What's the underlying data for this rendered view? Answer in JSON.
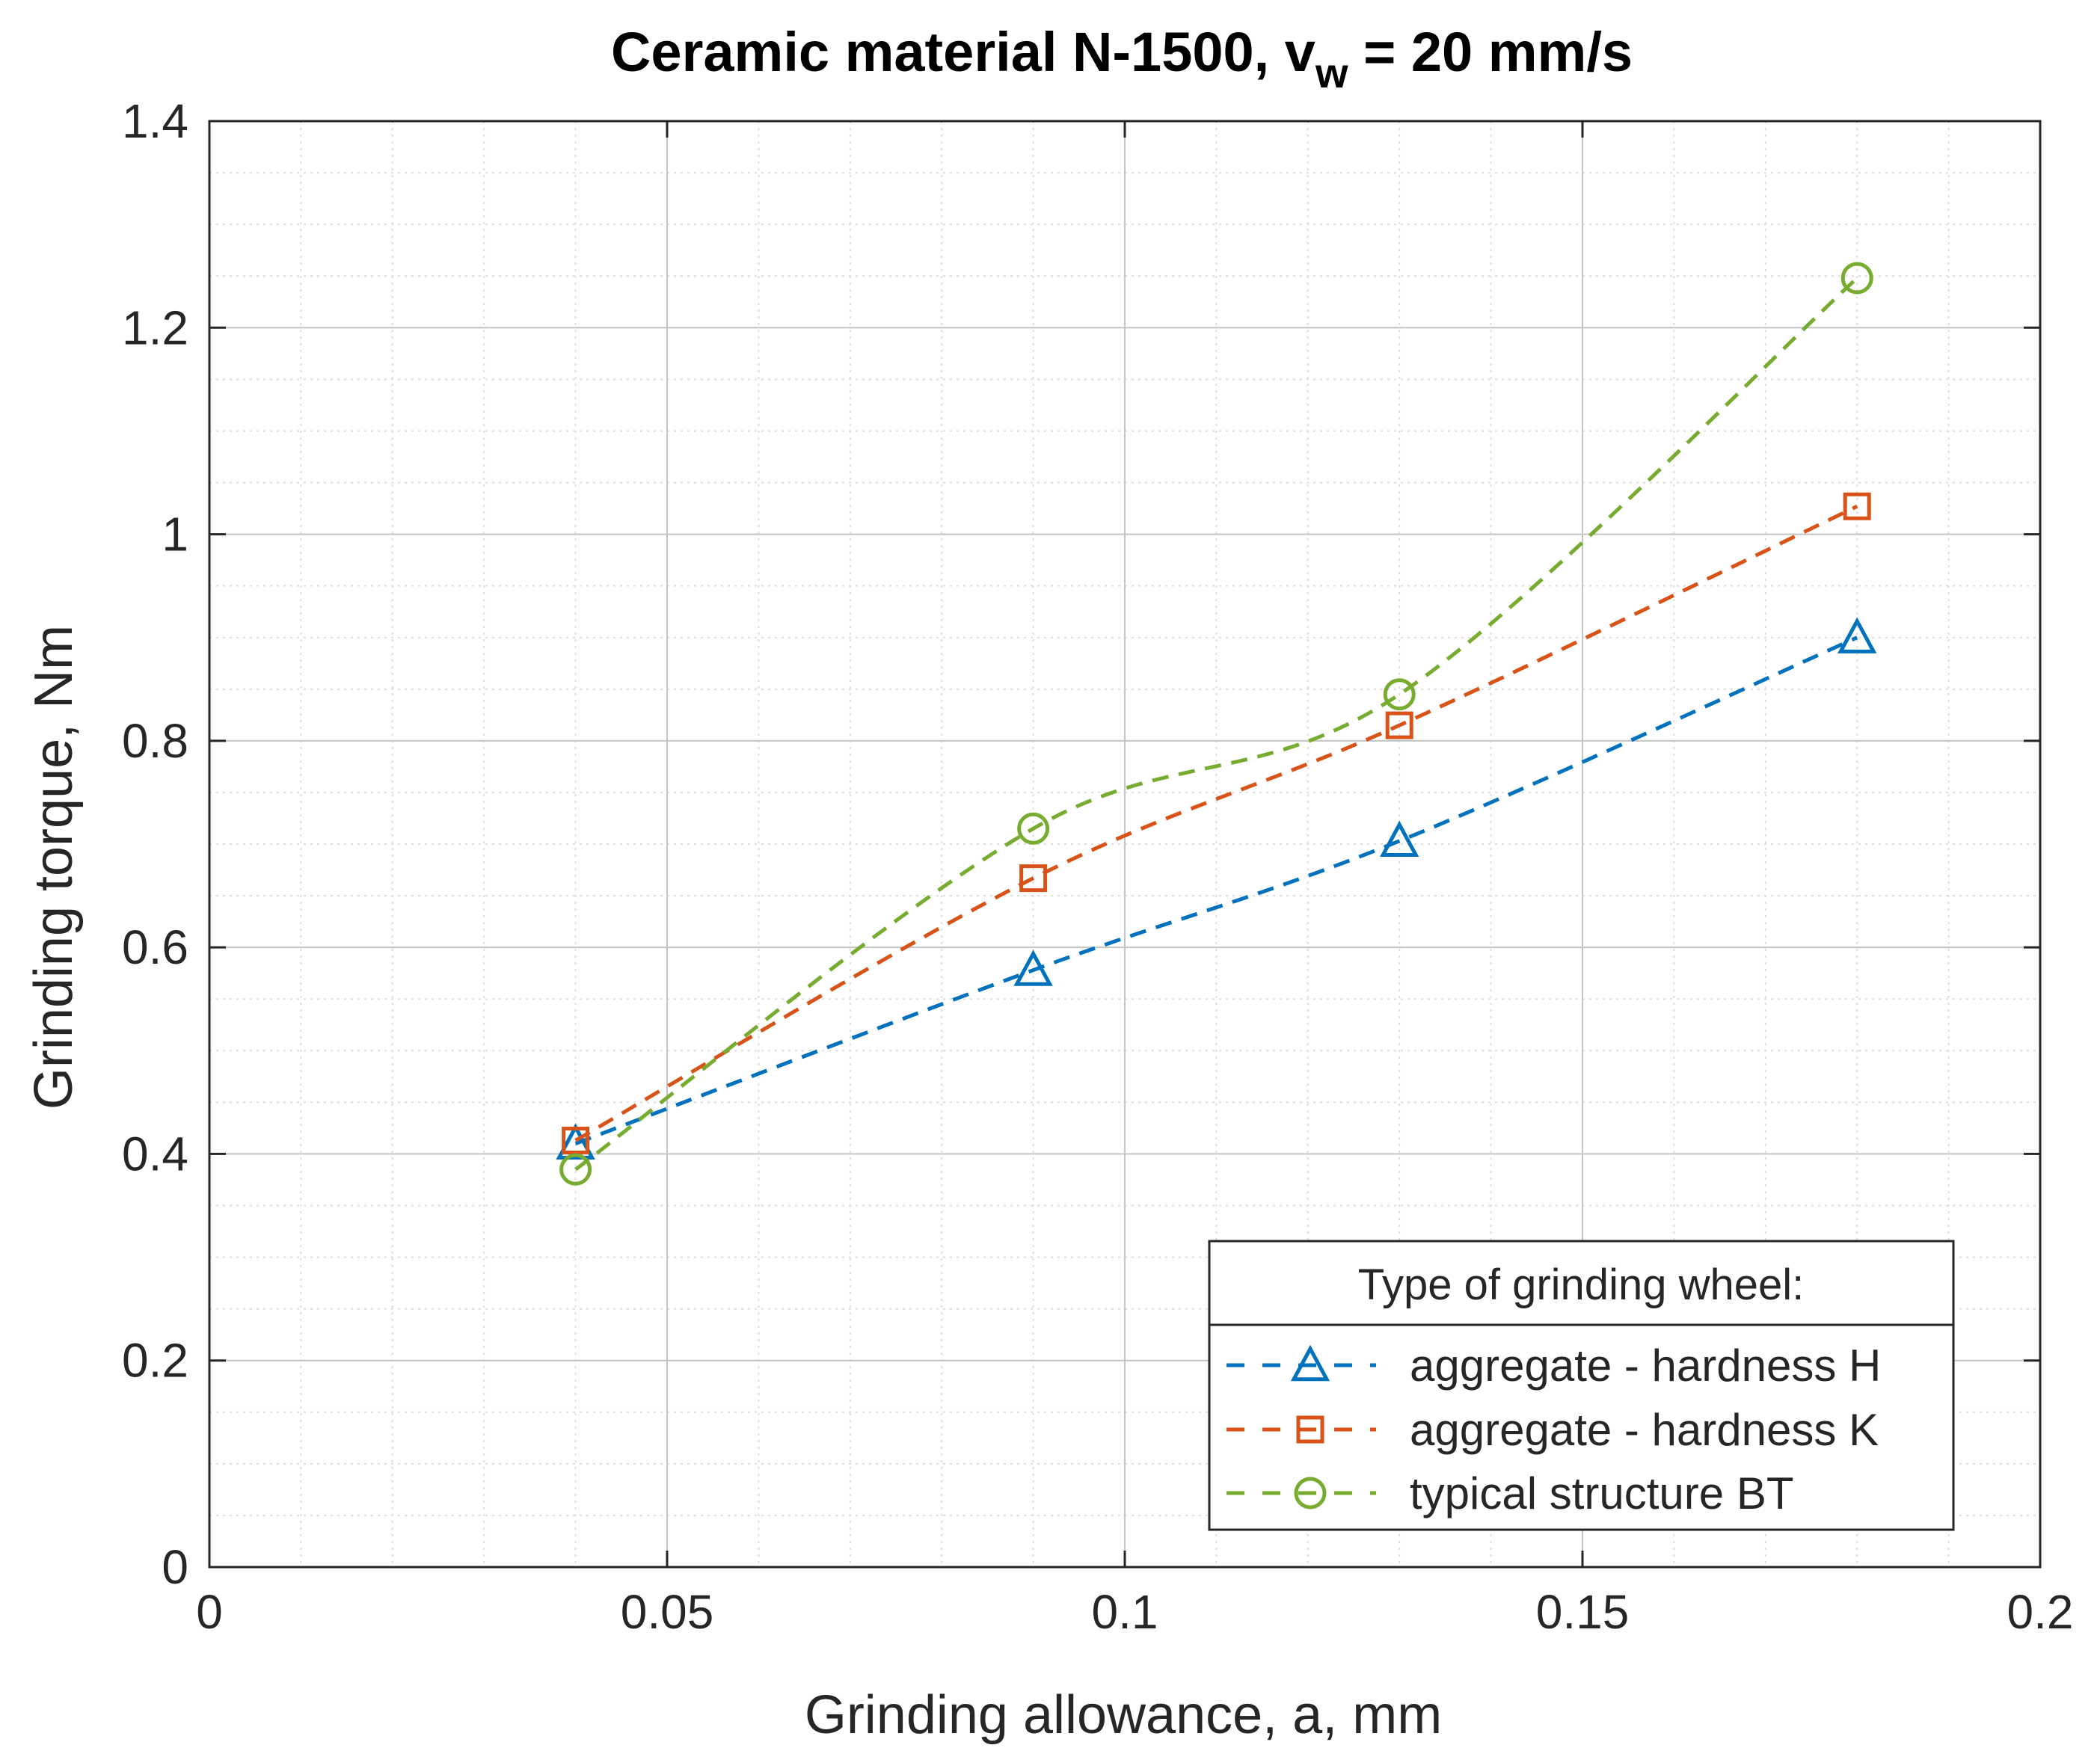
{
  "chart_data": {
    "type": "line",
    "title": "Ceramic material N-1500, v",
    "title_subscript": "w",
    "title_suffix": " = 20 mm/s",
    "xlabel": "Grinding allowance, a, mm",
    "ylabel": "Grinding torque, Nm",
    "xlim": [
      0,
      0.2
    ],
    "ylim": [
      0,
      1.4
    ],
    "xticks": [
      0,
      0.05,
      0.1,
      0.15,
      0.2
    ],
    "xtick_labels": [
      "0",
      "0.05",
      "0.1",
      "0.15",
      "0.2"
    ],
    "yticks": [
      0,
      0.2,
      0.4,
      0.6,
      0.8,
      1,
      1.2,
      1.4
    ],
    "ytick_labels": [
      "0",
      "0.2",
      "0.4",
      "0.6",
      "0.8",
      "1",
      "1.2",
      "1.4"
    ],
    "grid": true,
    "minor_grid": true,
    "legend_title": "Type of grinding wheel:",
    "legend_position": "bottom-right",
    "x": [
      0.04,
      0.09,
      0.13,
      0.18
    ],
    "series": [
      {
        "name": "aggregate - hardness H",
        "marker": "triangle",
        "color": "#0072BD",
        "values": [
          0.41,
          0.578,
          0.703,
          0.9
        ]
      },
      {
        "name": "aggregate - hardness K",
        "marker": "square",
        "color": "#D95319",
        "values": [
          0.413,
          0.667,
          0.815,
          1.027
        ]
      },
      {
        "name": "typical structure BT",
        "marker": "circle",
        "color": "#77AC30",
        "values": [
          0.385,
          0.715,
          0.845,
          1.248
        ]
      }
    ]
  }
}
